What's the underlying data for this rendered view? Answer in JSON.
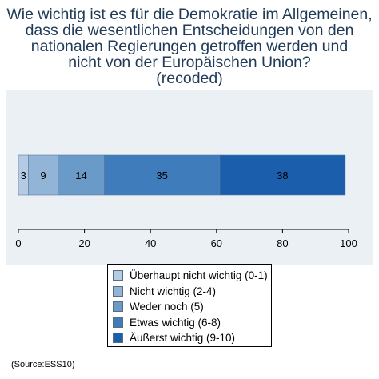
{
  "title_lines": [
    "Wie wichtig ist es für die Demokratie im Allgemeinen,",
    "dass die wesentlichen Entscheidungen von den",
    "nationalen Regierungen getroffen werden und",
    "nicht von der Europäischen Union?",
    "(recoded)"
  ],
  "source": "(Source:ESS10)",
  "colors": {
    "title": "#1f3b57",
    "plot_background": "#ebf0f5",
    "segment_labels": "#000000"
  },
  "chart_data": {
    "type": "bar",
    "orientation": "horizontal",
    "stacked": true,
    "series": [
      {
        "name": "Überhaupt nicht wichtig (0-1)",
        "values": [
          3
        ],
        "color": "#b4cbe3"
      },
      {
        "name": "Nicht wichtig (2-4)",
        "values": [
          9
        ],
        "color": "#92b4d6"
      },
      {
        "name": "Weder noch (5)",
        "values": [
          14
        ],
        "color": "#6a9ac8"
      },
      {
        "name": "Etwas wichtig (6-8)",
        "values": [
          35
        ],
        "color": "#3f7cbc"
      },
      {
        "name": "Äußerst wichtig (9-10)",
        "values": [
          38
        ],
        "color": "#1b5fac"
      }
    ],
    "xlim": [
      0,
      100
    ],
    "xticks": [
      0,
      20,
      40,
      60,
      80,
      100
    ],
    "legend_position": "bottom",
    "grid": false
  }
}
